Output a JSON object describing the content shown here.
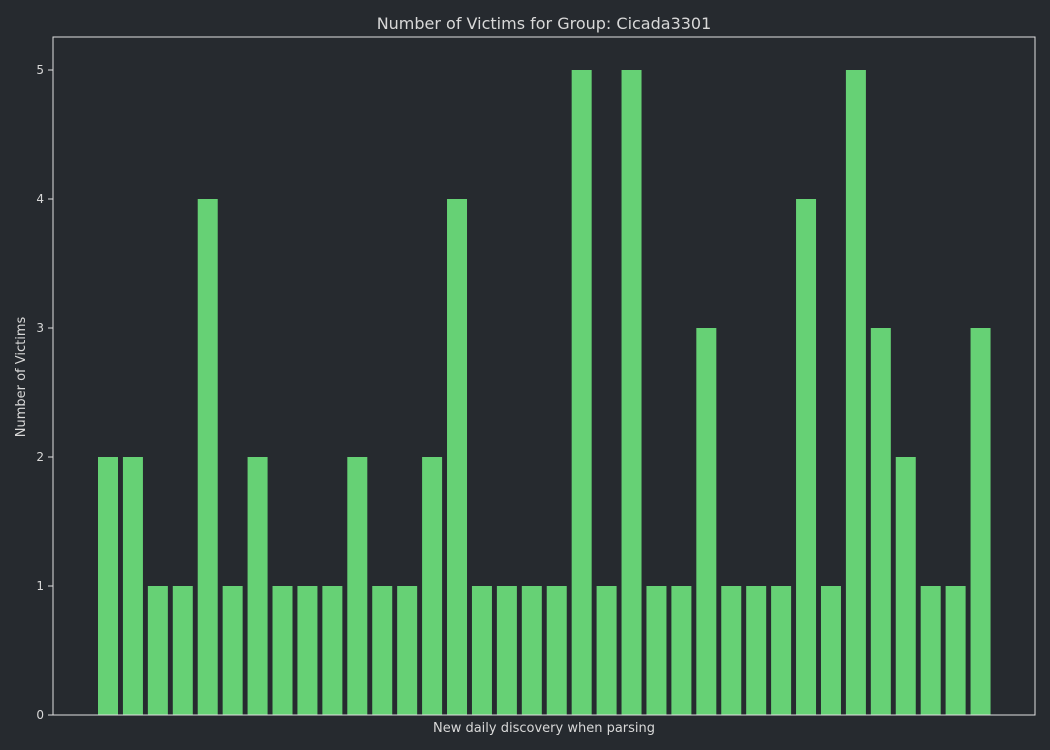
{
  "chart_data": {
    "type": "bar",
    "title": "Number of Victims for Group: Cicada3301",
    "xlabel": "New daily discovery when parsing",
    "ylabel": "Number of Victims",
    "values": [
      2,
      2,
      1,
      1,
      4,
      1,
      2,
      1,
      1,
      1,
      2,
      1,
      1,
      2,
      4,
      1,
      1,
      1,
      1,
      5,
      1,
      5,
      1,
      1,
      3,
      1,
      1,
      1,
      4,
      1,
      5,
      3,
      2,
      1,
      1,
      3
    ],
    "ylim": [
      0,
      5.25
    ],
    "yticks": [
      0,
      1,
      2,
      3,
      4,
      5
    ],
    "grid": false,
    "bar_color": "#66d175",
    "background": "#262a2f"
  }
}
